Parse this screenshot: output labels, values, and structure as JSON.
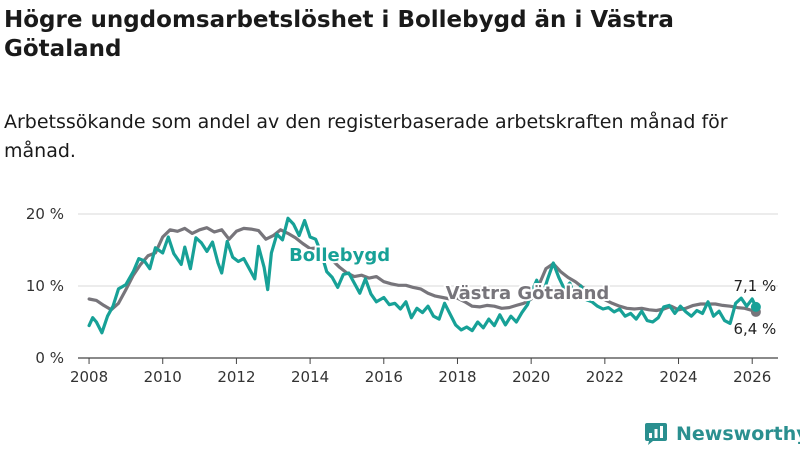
{
  "title": "Högre ungdomsarbetslöshet i Bollebygd än i Västra Götaland",
  "subtitle": "Arbetssökande som andel av den registerbaserade arbetskraften månad för månad.",
  "brand": {
    "name": "Newsworthy",
    "icon": "newsworthy-logo-icon",
    "color": "#2a8f8f"
  },
  "chart_data": {
    "type": "line",
    "title": "Högre ungdomsarbetslöshet i Bollebygd än i Västra Götaland",
    "xlabel": "",
    "ylabel": "",
    "xlim": [
      2007.7,
      2026.7
    ],
    "ylim": [
      0,
      20
    ],
    "y_ticks": [
      0,
      10,
      20
    ],
    "y_tick_labels": [
      "0 %",
      "10 %",
      "20 %"
    ],
    "x_ticks": [
      2008,
      2010,
      2012,
      2014,
      2016,
      2018,
      2020,
      2022,
      2024,
      2026
    ],
    "grid": true,
    "series": [
      {
        "name": "Västra Götaland",
        "color": "#77757b",
        "label": "Västra Götaland",
        "end_label": "6,4 %",
        "points": [
          [
            2008.0,
            8.2
          ],
          [
            2008.2,
            8.0
          ],
          [
            2008.4,
            7.3
          ],
          [
            2008.6,
            6.7
          ],
          [
            2008.8,
            7.6
          ],
          [
            2009.0,
            9.5
          ],
          [
            2009.2,
            11.5
          ],
          [
            2009.4,
            13.0
          ],
          [
            2009.6,
            14.2
          ],
          [
            2009.8,
            14.6
          ],
          [
            2010.0,
            16.8
          ],
          [
            2010.2,
            17.8
          ],
          [
            2010.4,
            17.6
          ],
          [
            2010.6,
            18.0
          ],
          [
            2010.8,
            17.3
          ],
          [
            2011.0,
            17.8
          ],
          [
            2011.2,
            18.1
          ],
          [
            2011.4,
            17.5
          ],
          [
            2011.6,
            17.8
          ],
          [
            2011.8,
            16.5
          ],
          [
            2012.0,
            17.6
          ],
          [
            2012.2,
            18.0
          ],
          [
            2012.4,
            17.9
          ],
          [
            2012.6,
            17.7
          ],
          [
            2012.8,
            16.5
          ],
          [
            2013.0,
            17.0
          ],
          [
            2013.2,
            17.8
          ],
          [
            2013.4,
            17.3
          ],
          [
            2013.6,
            16.7
          ],
          [
            2013.8,
            15.9
          ],
          [
            2014.0,
            15.2
          ],
          [
            2014.2,
            15.3
          ],
          [
            2014.4,
            14.0
          ],
          [
            2014.6,
            13.6
          ],
          [
            2014.8,
            12.6
          ],
          [
            2015.0,
            11.8
          ],
          [
            2015.2,
            11.3
          ],
          [
            2015.4,
            11.5
          ],
          [
            2015.6,
            11.1
          ],
          [
            2015.8,
            11.3
          ],
          [
            2016.0,
            10.6
          ],
          [
            2016.2,
            10.3
          ],
          [
            2016.4,
            10.1
          ],
          [
            2016.6,
            10.1
          ],
          [
            2016.8,
            9.8
          ],
          [
            2017.0,
            9.6
          ],
          [
            2017.2,
            9.0
          ],
          [
            2017.4,
            8.6
          ],
          [
            2017.6,
            8.4
          ],
          [
            2017.8,
            8.2
          ],
          [
            2018.0,
            8.3
          ],
          [
            2018.2,
            7.8
          ],
          [
            2018.4,
            7.2
          ],
          [
            2018.6,
            7.1
          ],
          [
            2018.8,
            7.3
          ],
          [
            2019.0,
            7.2
          ],
          [
            2019.2,
            6.9
          ],
          [
            2019.4,
            7.0
          ],
          [
            2019.6,
            7.3
          ],
          [
            2019.8,
            7.6
          ],
          [
            2020.0,
            8.2
          ],
          [
            2020.2,
            10.0
          ],
          [
            2020.4,
            12.4
          ],
          [
            2020.6,
            13.1
          ],
          [
            2020.8,
            12.0
          ],
          [
            2021.0,
            11.2
          ],
          [
            2021.2,
            10.6
          ],
          [
            2021.4,
            9.8
          ],
          [
            2021.6,
            9.2
          ],
          [
            2021.8,
            8.5
          ],
          [
            2022.0,
            8.1
          ],
          [
            2022.2,
            7.6
          ],
          [
            2022.4,
            7.2
          ],
          [
            2022.6,
            6.9
          ],
          [
            2022.8,
            6.8
          ],
          [
            2023.0,
            6.9
          ],
          [
            2023.2,
            6.7
          ],
          [
            2023.4,
            6.6
          ],
          [
            2023.6,
            6.8
          ],
          [
            2023.8,
            7.2
          ],
          [
            2024.0,
            6.7
          ],
          [
            2024.2,
            6.9
          ],
          [
            2024.4,
            7.3
          ],
          [
            2024.6,
            7.5
          ],
          [
            2024.8,
            7.5
          ],
          [
            2025.0,
            7.5
          ],
          [
            2025.2,
            7.3
          ],
          [
            2025.4,
            7.2
          ],
          [
            2025.6,
            7.0
          ],
          [
            2025.8,
            6.9
          ],
          [
            2026.0,
            6.6
          ],
          [
            2026.1,
            6.4
          ]
        ]
      },
      {
        "name": "Bollebygd",
        "color": "#17a197",
        "label": "Bollebygd",
        "end_label": "7,1 %",
        "points": [
          [
            2008.0,
            4.5
          ],
          [
            2008.1,
            5.6
          ],
          [
            2008.2,
            5.0
          ],
          [
            2008.35,
            3.5
          ],
          [
            2008.5,
            5.8
          ],
          [
            2008.65,
            7.2
          ],
          [
            2008.8,
            9.6
          ],
          [
            2009.0,
            10.2
          ],
          [
            2009.2,
            12.0
          ],
          [
            2009.35,
            13.8
          ],
          [
            2009.5,
            13.5
          ],
          [
            2009.65,
            12.4
          ],
          [
            2009.8,
            15.3
          ],
          [
            2010.0,
            14.6
          ],
          [
            2010.15,
            16.8
          ],
          [
            2010.3,
            14.5
          ],
          [
            2010.5,
            13.0
          ],
          [
            2010.6,
            15.4
          ],
          [
            2010.75,
            12.4
          ],
          [
            2010.9,
            16.7
          ],
          [
            2011.05,
            16.0
          ],
          [
            2011.2,
            14.8
          ],
          [
            2011.35,
            16.1
          ],
          [
            2011.5,
            13.2
          ],
          [
            2011.6,
            11.8
          ],
          [
            2011.75,
            16.2
          ],
          [
            2011.9,
            14.0
          ],
          [
            2012.05,
            13.4
          ],
          [
            2012.2,
            13.8
          ],
          [
            2012.35,
            12.4
          ],
          [
            2012.5,
            11.0
          ],
          [
            2012.6,
            15.5
          ],
          [
            2012.75,
            12.6
          ],
          [
            2012.85,
            9.5
          ],
          [
            2012.95,
            14.6
          ],
          [
            2013.1,
            17.2
          ],
          [
            2013.25,
            16.4
          ],
          [
            2013.4,
            19.4
          ],
          [
            2013.55,
            18.6
          ],
          [
            2013.7,
            17.0
          ],
          [
            2013.85,
            19.1
          ],
          [
            2014.0,
            16.8
          ],
          [
            2014.15,
            16.5
          ],
          [
            2014.3,
            14.6
          ],
          [
            2014.45,
            12.0
          ],
          [
            2014.6,
            11.2
          ],
          [
            2014.75,
            9.8
          ],
          [
            2014.9,
            11.6
          ],
          [
            2015.05,
            11.8
          ],
          [
            2015.2,
            10.4
          ],
          [
            2015.35,
            9.0
          ],
          [
            2015.5,
            11.0
          ],
          [
            2015.65,
            8.9
          ],
          [
            2015.8,
            7.8
          ],
          [
            2016.0,
            8.4
          ],
          [
            2016.15,
            7.4
          ],
          [
            2016.3,
            7.6
          ],
          [
            2016.45,
            6.8
          ],
          [
            2016.6,
            7.8
          ],
          [
            2016.75,
            5.6
          ],
          [
            2016.9,
            6.9
          ],
          [
            2017.05,
            6.3
          ],
          [
            2017.2,
            7.2
          ],
          [
            2017.35,
            5.8
          ],
          [
            2017.5,
            5.4
          ],
          [
            2017.65,
            7.6
          ],
          [
            2017.8,
            6.1
          ],
          [
            2017.95,
            4.6
          ],
          [
            2018.1,
            3.9
          ],
          [
            2018.25,
            4.3
          ],
          [
            2018.4,
            3.8
          ],
          [
            2018.55,
            5.0
          ],
          [
            2018.7,
            4.2
          ],
          [
            2018.85,
            5.4
          ],
          [
            2019.0,
            4.5
          ],
          [
            2019.15,
            6.0
          ],
          [
            2019.3,
            4.6
          ],
          [
            2019.45,
            5.8
          ],
          [
            2019.6,
            5.0
          ],
          [
            2019.75,
            6.3
          ],
          [
            2019.9,
            7.4
          ],
          [
            2020.05,
            9.6
          ],
          [
            2020.15,
            10.8
          ],
          [
            2020.3,
            8.6
          ],
          [
            2020.45,
            11.0
          ],
          [
            2020.6,
            13.2
          ],
          [
            2020.75,
            11.2
          ],
          [
            2020.9,
            9.6
          ],
          [
            2021.05,
            10.4
          ],
          [
            2021.2,
            8.3
          ],
          [
            2021.35,
            10.0
          ],
          [
            2021.5,
            8.1
          ],
          [
            2021.65,
            7.8
          ],
          [
            2021.8,
            7.2
          ],
          [
            2021.95,
            6.8
          ],
          [
            2022.1,
            7.0
          ],
          [
            2022.25,
            6.4
          ],
          [
            2022.4,
            6.8
          ],
          [
            2022.55,
            5.8
          ],
          [
            2022.7,
            6.2
          ],
          [
            2022.85,
            5.4
          ],
          [
            2023.0,
            6.5
          ],
          [
            2023.15,
            5.2
          ],
          [
            2023.3,
            5.0
          ],
          [
            2023.45,
            5.6
          ],
          [
            2023.6,
            7.1
          ],
          [
            2023.75,
            7.3
          ],
          [
            2023.9,
            6.2
          ],
          [
            2024.05,
            7.2
          ],
          [
            2024.2,
            6.4
          ],
          [
            2024.35,
            5.8
          ],
          [
            2024.5,
            6.6
          ],
          [
            2024.65,
            6.2
          ],
          [
            2024.8,
            7.8
          ],
          [
            2024.95,
            5.8
          ],
          [
            2025.1,
            6.5
          ],
          [
            2025.25,
            5.2
          ],
          [
            2025.4,
            4.8
          ],
          [
            2025.55,
            7.6
          ],
          [
            2025.7,
            8.3
          ],
          [
            2025.85,
            7.2
          ],
          [
            2026.0,
            8.2
          ],
          [
            2026.1,
            7.1
          ]
        ]
      }
    ]
  }
}
